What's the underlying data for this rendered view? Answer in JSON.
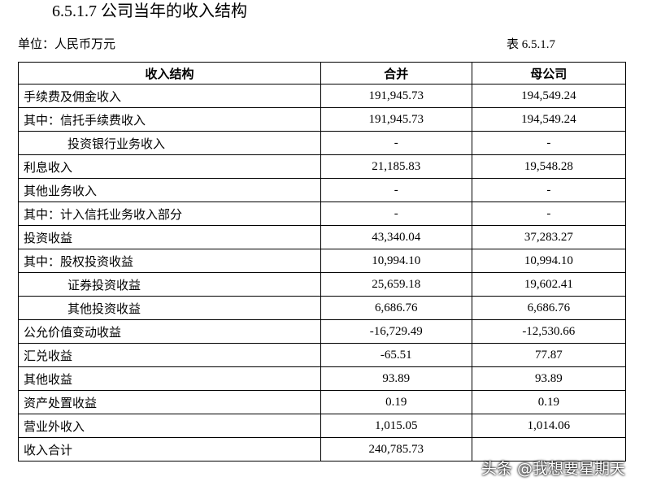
{
  "header": {
    "title": "6.5.1.7 公司当年的收入结构",
    "unit": "单位：人民币万元",
    "table_number": "表 6.5.1.7"
  },
  "table": {
    "columns": [
      "收入结构",
      "合并",
      "母公司"
    ],
    "rows": [
      [
        "手续费及佣金收入",
        "191,945.73",
        "194,549.24"
      ],
      [
        "其中：信托手续费收入",
        "191,945.73",
        "194,549.24"
      ],
      [
        "投资银行业务收入",
        "-",
        "-"
      ],
      [
        "利息收入",
        "21,185.83",
        "19,548.28"
      ],
      [
        "其他业务收入",
        "-",
        "-"
      ],
      [
        "其中：计入信托业务收入部分",
        "-",
        "-"
      ],
      [
        "投资收益",
        "43,340.04",
        "37,283.27"
      ],
      [
        "其中：股权投资收益",
        "10,994.10",
        "10,994.10"
      ],
      [
        "证券投资收益",
        "25,659.18",
        "19,602.41"
      ],
      [
        "其他投资收益",
        "6,686.76",
        "6,686.76"
      ],
      [
        "公允价值变动收益",
        "-16,729.49",
        "-12,530.66"
      ],
      [
        "汇兑收益",
        "-65.51",
        "77.87"
      ],
      [
        "其他收益",
        "93.89",
        "93.89"
      ],
      [
        "资产处置收益",
        "0.19",
        "0.19"
      ],
      [
        "营业外收入",
        "1,015.05",
        "1,014.06"
      ],
      [
        "收入合计",
        "240,785.73",
        null
      ]
    ]
  },
  "watermark": "头条 @我想要星期天"
}
